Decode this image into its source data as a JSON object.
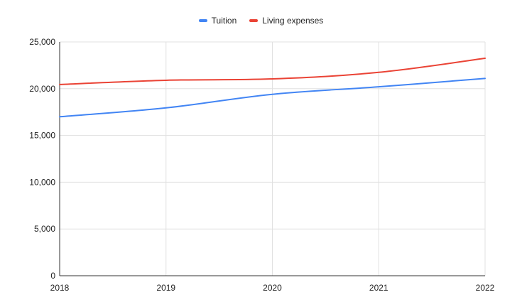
{
  "chart_data": {
    "type": "line",
    "title": "",
    "xlabel": "",
    "ylabel": "",
    "categories": [
      "2018",
      "2019",
      "2020",
      "2021",
      "2022"
    ],
    "y_ticks": [
      "0",
      "5,000",
      "10,000",
      "15,000",
      "20,000",
      "25,000"
    ],
    "y_tick_values": [
      0,
      5000,
      10000,
      15000,
      20000,
      25000
    ],
    "ylim": [
      0,
      25000
    ],
    "grid": true,
    "legend_position": "top-center",
    "series": [
      {
        "name": "Tuition",
        "color": "#4285f4",
        "values": [
          17000,
          17950,
          19400,
          20200,
          21100
        ]
      },
      {
        "name": "Living expenses",
        "color": "#ea4335",
        "values": [
          20450,
          20900,
          21050,
          21750,
          23250
        ]
      }
    ]
  }
}
